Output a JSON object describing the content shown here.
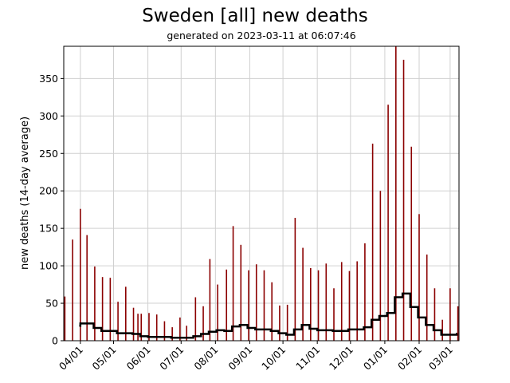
{
  "chart_data": {
    "type": "bar",
    "title": "Sweden [all] new deaths",
    "subtitle": "generated on 2023-03-11 at 06:07:46",
    "xlabel": "",
    "ylabel": "new deaths (14-day average)",
    "xlim": [
      "2022-03-17",
      "2023-03-09"
    ],
    "ylim": [
      0,
      393
    ],
    "grid": true,
    "bar_color": "#8b0000",
    "line_color": "#000000",
    "x_ticks": [
      {
        "date": "2022-04-01",
        "label": "04/01"
      },
      {
        "date": "2022-05-01",
        "label": "05/01"
      },
      {
        "date": "2022-06-01",
        "label": "06/01"
      },
      {
        "date": "2022-07-01",
        "label": "07/01"
      },
      {
        "date": "2022-08-01",
        "label": "08/01"
      },
      {
        "date": "2022-09-01",
        "label": "09/01"
      },
      {
        "date": "2022-10-01",
        "label": "10/01"
      },
      {
        "date": "2022-11-01",
        "label": "11/01"
      },
      {
        "date": "2022-12-01",
        "label": "12/01"
      },
      {
        "date": "2023-01-01",
        "label": "01/01"
      },
      {
        "date": "2023-02-01",
        "label": "02/01"
      },
      {
        "date": "2023-03-01",
        "label": "03/01"
      }
    ],
    "y_ticks": [
      0,
      50,
      100,
      150,
      200,
      250,
      300,
      350
    ],
    "series": [
      {
        "type": "bar",
        "points": [
          [
            "2022-03-18",
            59
          ],
          [
            "2022-03-25",
            135
          ],
          [
            "2022-04-01",
            176
          ],
          [
            "2022-04-07",
            141
          ],
          [
            "2022-04-14",
            99
          ],
          [
            "2022-04-21",
            85
          ],
          [
            "2022-04-28",
            84
          ],
          [
            "2022-05-05",
            52
          ],
          [
            "2022-05-12",
            72
          ],
          [
            "2022-05-19",
            44
          ],
          [
            "2022-05-23",
            36
          ],
          [
            "2022-05-26",
            36
          ],
          [
            "2022-06-02",
            37
          ],
          [
            "2022-06-09",
            35
          ],
          [
            "2022-06-16",
            26
          ],
          [
            "2022-06-23",
            18
          ],
          [
            "2022-06-30",
            31
          ],
          [
            "2022-07-06",
            20
          ],
          [
            "2022-07-14",
            58
          ],
          [
            "2022-07-21",
            46
          ],
          [
            "2022-07-27",
            109
          ],
          [
            "2022-08-03",
            75
          ],
          [
            "2022-08-11",
            95
          ],
          [
            "2022-08-17",
            153
          ],
          [
            "2022-08-24",
            128
          ],
          [
            "2022-08-31",
            94
          ],
          [
            "2022-09-07",
            102
          ],
          [
            "2022-09-14",
            94
          ],
          [
            "2022-09-21",
            78
          ],
          [
            "2022-09-28",
            47
          ],
          [
            "2022-10-05",
            48
          ],
          [
            "2022-10-12",
            164
          ],
          [
            "2022-10-19",
            124
          ],
          [
            "2022-10-26",
            97
          ],
          [
            "2022-11-02",
            94
          ],
          [
            "2022-11-09",
            103
          ],
          [
            "2022-11-16",
            70
          ],
          [
            "2022-11-23",
            105
          ],
          [
            "2022-11-30",
            93
          ],
          [
            "2022-12-07",
            106
          ],
          [
            "2022-12-14",
            130
          ],
          [
            "2022-12-21",
            263
          ],
          [
            "2022-12-28",
            200
          ],
          [
            "2023-01-04",
            315
          ],
          [
            "2023-01-11",
            393
          ],
          [
            "2023-01-18",
            375
          ],
          [
            "2023-01-25",
            259
          ],
          [
            "2023-02-01",
            169
          ],
          [
            "2023-02-08",
            115
          ],
          [
            "2023-02-15",
            70
          ],
          [
            "2023-02-22",
            28
          ],
          [
            "2023-03-01",
            70
          ],
          [
            "2023-03-08",
            46
          ]
        ]
      },
      {
        "type": "line",
        "points": [
          [
            "2022-03-31",
            20
          ],
          [
            "2022-04-01",
            23
          ],
          [
            "2022-04-13",
            17
          ],
          [
            "2022-04-20",
            13
          ],
          [
            "2022-05-04",
            10
          ],
          [
            "2022-05-18",
            9
          ],
          [
            "2022-05-25",
            6
          ],
          [
            "2022-06-01",
            5
          ],
          [
            "2022-06-22",
            4
          ],
          [
            "2022-07-12",
            6
          ],
          [
            "2022-07-19",
            9
          ],
          [
            "2022-07-26",
            12
          ],
          [
            "2022-08-02",
            14
          ],
          [
            "2022-08-09",
            13
          ],
          [
            "2022-08-16",
            19
          ],
          [
            "2022-08-23",
            21
          ],
          [
            "2022-08-30",
            17
          ],
          [
            "2022-09-06",
            15
          ],
          [
            "2022-09-20",
            13
          ],
          [
            "2022-09-27",
            10
          ],
          [
            "2022-10-04",
            8
          ],
          [
            "2022-10-11",
            15
          ],
          [
            "2022-10-18",
            21
          ],
          [
            "2022-10-25",
            16
          ],
          [
            "2022-11-01",
            14
          ],
          [
            "2022-11-15",
            13
          ],
          [
            "2022-11-29",
            15
          ],
          [
            "2022-12-13",
            18
          ],
          [
            "2022-12-20",
            28
          ],
          [
            "2022-12-27",
            33
          ],
          [
            "2023-01-03",
            37
          ],
          [
            "2023-01-10",
            58
          ],
          [
            "2023-01-17",
            63
          ],
          [
            "2023-01-24",
            45
          ],
          [
            "2023-01-31",
            31
          ],
          [
            "2023-02-07",
            21
          ],
          [
            "2023-02-14",
            14
          ],
          [
            "2023-02-21",
            8
          ],
          [
            "2023-03-07",
            9
          ]
        ]
      }
    ]
  }
}
